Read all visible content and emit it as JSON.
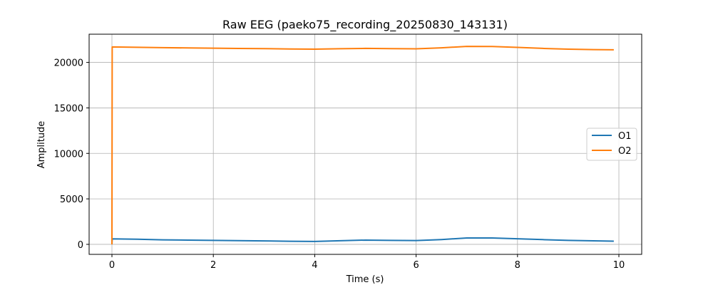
{
  "chart_data": {
    "type": "line",
    "title": "Raw EEG (paeko75_recording_20250830_143131)",
    "xlabel": "Time (s)",
    "ylabel": "Amplitude",
    "xlim": [
      -0.45,
      10.45
    ],
    "ylim": [
      -1100,
      23100
    ],
    "xticks": [
      0,
      2,
      4,
      6,
      8,
      10
    ],
    "yticks": [
      0,
      5000,
      10000,
      15000,
      20000
    ],
    "grid": true,
    "legend_position": "right",
    "series": [
      {
        "name": "O1",
        "color": "#1f77b4",
        "x": [
          0,
          0.005,
          0.5,
          1.0,
          1.5,
          2.0,
          2.5,
          3.0,
          3.5,
          4.0,
          4.5,
          5.0,
          5.5,
          6.0,
          6.5,
          7.0,
          7.5,
          8.0,
          8.5,
          9.0,
          9.5,
          9.9
        ],
        "y": [
          0,
          600,
          560,
          500,
          470,
          440,
          410,
          380,
          340,
          320,
          400,
          470,
          440,
          420,
          530,
          700,
          700,
          610,
          520,
          440,
          390,
          350
        ]
      },
      {
        "name": "O2",
        "color": "#ff7f0e",
        "x": [
          0,
          0.005,
          0.5,
          1.0,
          1.5,
          2.0,
          2.5,
          3.0,
          3.5,
          4.0,
          4.5,
          5.0,
          5.5,
          6.0,
          6.5,
          7.0,
          7.5,
          8.0,
          8.5,
          9.0,
          9.5,
          9.9
        ],
        "y": [
          0,
          21700,
          21660,
          21620,
          21590,
          21560,
          21530,
          21510,
          21480,
          21460,
          21500,
          21540,
          21510,
          21490,
          21600,
          21760,
          21750,
          21650,
          21540,
          21460,
          21410,
          21390
        ]
      }
    ]
  }
}
